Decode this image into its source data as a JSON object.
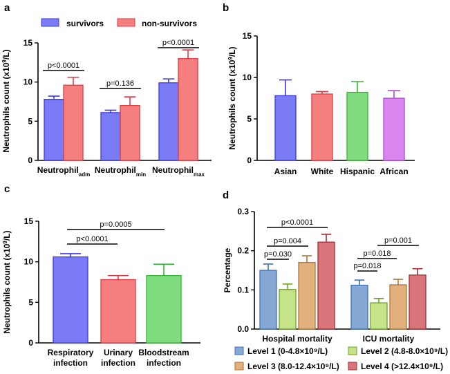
{
  "colors": {
    "survivors": "#7b7bf5",
    "survivors_edge": "#3a3ae0",
    "non_survivors": "#f57f7f",
    "non_survivors_edge": "#e0393d",
    "asian": "#7b7bf5",
    "asian_edge": "#3a3ae0",
    "white": "#f57f7f",
    "white_edge": "#e0393d",
    "hispanic": "#7fdc7f",
    "hispanic_edge": "#33b633",
    "african": "#da86ef",
    "african_edge": "#b14bd6",
    "level1": "#86a8d5",
    "level1_edge": "#3f6fb4",
    "level2": "#c6e487",
    "level2_edge": "#6e9f2c",
    "level3": "#e2b07d",
    "level3_edge": "#b27636",
    "level4": "#d9767c",
    "level4_edge": "#a32d36"
  },
  "chart_data": [
    {
      "panel": "a",
      "type": "bar",
      "ylabel": "Neutrophils count (x10^9/L)",
      "ylim": [
        0,
        15
      ],
      "yticks": [
        "0",
        "5",
        "10",
        "15"
      ],
      "groups": [
        {
          "label": "Neutrophil",
          "sub": "adm"
        },
        {
          "label": "Neutrophil",
          "sub": "min"
        },
        {
          "label": "Neutrophil",
          "sub": "max"
        }
      ],
      "series": [
        {
          "name": "survivors",
          "values": [
            7.8,
            6.1,
            9.9
          ],
          "errors": [
            0.4,
            0.3,
            0.5
          ]
        },
        {
          "name": "non-survivors",
          "values": [
            9.6,
            7.0,
            13.0
          ],
          "errors": [
            1.0,
            1.1,
            1.1
          ]
        }
      ],
      "annotations": [
        "p<0.0001",
        "p=0.136",
        "p<0.0001"
      ]
    },
    {
      "panel": "b",
      "type": "bar",
      "ylabel": "Neutrophils count (x10^9/L)",
      "ylim": [
        0,
        15
      ],
      "yticks": [
        "0",
        "5",
        "10",
        "15"
      ],
      "categories": [
        "Asian",
        "White",
        "Hispanic",
        "African"
      ],
      "values": [
        7.8,
        8.0,
        8.2,
        7.5
      ],
      "errors": [
        1.9,
        0.3,
        1.3,
        0.9
      ]
    },
    {
      "panel": "c",
      "type": "bar",
      "ylabel": "Neutrophils count (x10^9/L)",
      "ylim": [
        0,
        15
      ],
      "yticks": [
        "0",
        "5",
        "10",
        "15"
      ],
      "categories": [
        {
          "line1": "Respiratory",
          "line2": "infection"
        },
        {
          "line1": "Urinary",
          "line2": "infection"
        },
        {
          "line1": "Bloodstream",
          "line2": "infection"
        }
      ],
      "values": [
        10.6,
        7.8,
        8.3
      ],
      "errors": [
        0.4,
        0.5,
        1.4
      ],
      "annotations": [
        "p<0.0001",
        "p=0.0005"
      ]
    },
    {
      "panel": "d",
      "type": "bar",
      "ylabel": "Percentage",
      "ylim": [
        0,
        0.3
      ],
      "yticks": [
        "0.0",
        "0.1",
        "0.2",
        "0.3"
      ],
      "groups": [
        "Hospital mortality",
        "ICU mortality"
      ],
      "series": [
        {
          "name": "Level 1 (0-4.8×10⁹/L)",
          "values": [
            0.15,
            0.112
          ],
          "errors": [
            0.016,
            0.013
          ]
        },
        {
          "name": "Level 2 (4.8-8.0×10⁹/L)",
          "values": [
            0.101,
            0.067
          ],
          "errors": [
            0.014,
            0.011
          ]
        },
        {
          "name": "Level 3 (8.0-12.4×10⁹/L)",
          "values": [
            0.17,
            0.113
          ],
          "errors": [
            0.017,
            0.014
          ]
        },
        {
          "name": "Level 4 (>12.4×10⁹/L)",
          "values": [
            0.222,
            0.138
          ],
          "errors": [
            0.02,
            0.016
          ]
        }
      ],
      "annotations": [
        "p=0.030",
        "p=0.004",
        "p<0.0001",
        "p=0.018",
        "p=0.018",
        "p=0.001"
      ]
    }
  ],
  "labels": {
    "panel_a": "a",
    "panel_b": "b",
    "panel_c": "c",
    "panel_d": "d"
  }
}
